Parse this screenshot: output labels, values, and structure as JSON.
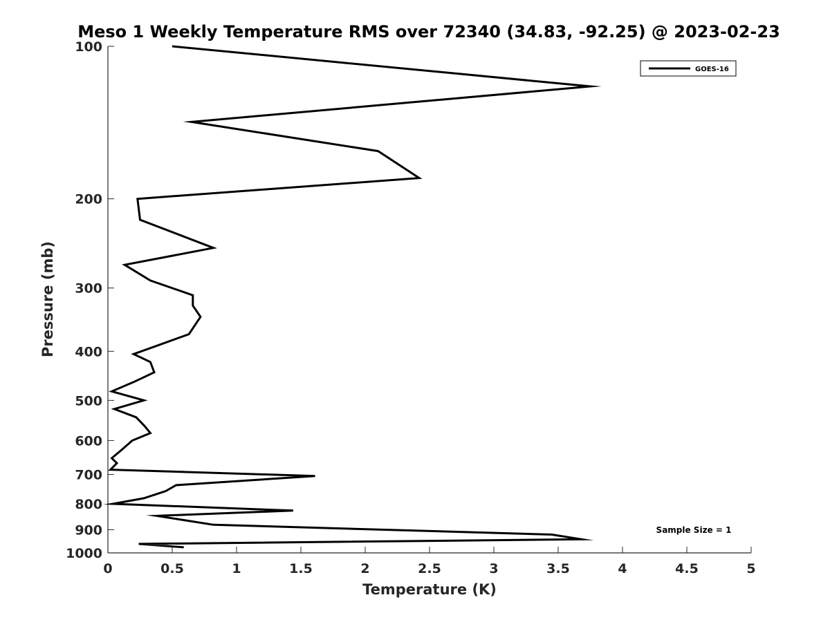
{
  "chart_data": {
    "type": "line",
    "title": "Meso 1 Weekly Temperature RMS over 72340 (34.83, -92.25) @ 2023-02-23",
    "xlabel": "Temperature (K)",
    "ylabel": "Pressure (mb)",
    "xlim": [
      0,
      5
    ],
    "ylim": [
      1000,
      100
    ],
    "y_scale": "log",
    "y_reversed": true,
    "x_ticks": [
      "0",
      "0.5",
      "1",
      "1.5",
      "2",
      "2.5",
      "3",
      "3.5",
      "4",
      "4.5",
      "5"
    ],
    "x_tick_values": [
      0,
      0.5,
      1,
      1.5,
      2,
      2.5,
      3,
      3.5,
      4,
      4.5,
      5
    ],
    "y_ticks": [
      "100",
      "200",
      "300",
      "400",
      "500",
      "600",
      "700",
      "800",
      "900",
      "1000"
    ],
    "y_tick_values": [
      100,
      200,
      300,
      400,
      500,
      600,
      700,
      800,
      900,
      1000
    ],
    "grid": false,
    "legend_position": "top-right",
    "annotation": "Sample Size = 1",
    "series": [
      {
        "name": "GOES-16",
        "color": "#000000",
        "x": [
          0.5,
          3.75,
          0.65,
          2.1,
          2.42,
          0.23,
          0.25,
          0.82,
          0.13,
          0.33,
          0.66,
          0.66,
          0.72,
          0.63,
          0.38,
          0.2,
          0.33,
          0.36,
          0.2,
          0.03,
          0.28,
          0.05,
          0.22,
          0.28,
          0.33,
          0.19,
          0.11,
          0.03,
          0.07,
          0.02,
          1.61,
          0.53,
          0.45,
          0.28,
          0.04,
          1.44,
          0.38,
          0.82,
          3.45,
          3.68,
          0.24,
          0.59
        ],
        "y": [
          100,
          120,
          141,
          161,
          182,
          200,
          220,
          250,
          270,
          290,
          310,
          325,
          342,
          370,
          390,
          405,
          420,
          440,
          460,
          480,
          500,
          520,
          540,
          560,
          580,
          600,
          625,
          650,
          665,
          685,
          705,
          735,
          755,
          780,
          800,
          825,
          845,
          880,
          920,
          940,
          960,
          975
        ]
      }
    ]
  }
}
